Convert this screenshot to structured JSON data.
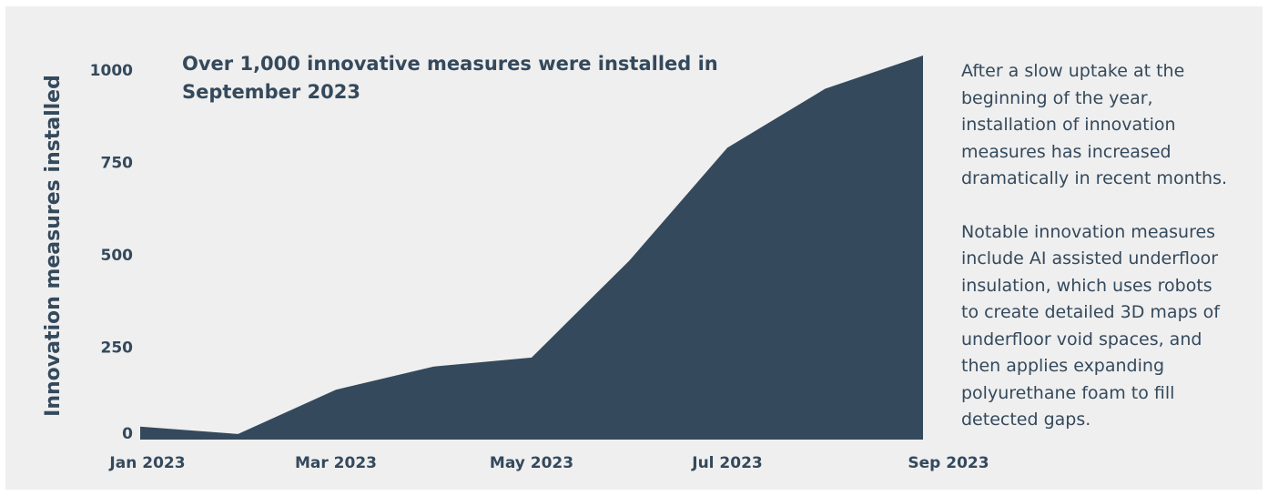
{
  "chart_data": {
    "type": "area",
    "title": "Over 1,000 innovative measures were installed in September 2023",
    "xlabel": "",
    "ylabel": "Innovation measures installed",
    "x": [
      "2023-01-01",
      "2023-02-01",
      "2023-03-01",
      "2023-04-01",
      "2023-05-01",
      "2023-06-01",
      "2023-07-01",
      "2023-08-01",
      "2023-09-01"
    ],
    "x_tick_labels": [
      "Jan 2023",
      "Mar 2023",
      "May 2023",
      "Jul 2023",
      "Sep 2023"
    ],
    "values": [
      35,
      15,
      135,
      198,
      222,
      485,
      790,
      950,
      1040
    ],
    "ylim": [
      0,
      1040
    ],
    "y_ticks": [
      0,
      250,
      500,
      750,
      1000
    ],
    "y_tick_labels": [
      "0",
      "250",
      "500",
      "750",
      "1000"
    ],
    "grid": false,
    "legend": "none",
    "colors": {
      "area": "#34495c",
      "background": "#efefef",
      "text": "#34495c"
    }
  },
  "notes": {
    "paragraph1": "After a slow uptake at the beginning of the year, installation of innovation measures has increased dramatically in recent months.",
    "paragraph2": "Notable innovation measures include AI assisted underfloor insulation, which uses robots to create detailed 3D maps of underfloor void spaces, and then applies expanding polyurethane foam to fill detected gaps."
  }
}
